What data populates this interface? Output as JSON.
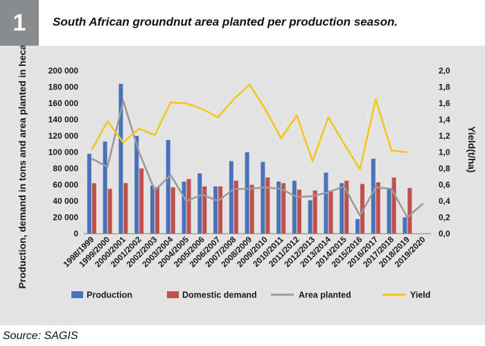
{
  "figure": {
    "number": "1",
    "title": "South African groundnut area planted per production season.",
    "source": "Source: SAGIS"
  },
  "colors": {
    "production": "#4a72b8",
    "domestic_demand": "#c0504d",
    "area_planted": "#9a9a9a",
    "yield": "#f2c61f",
    "panel_bg": "#e4e4e4",
    "number_box": "#8a8c8e"
  },
  "chart_data": {
    "type": "bar",
    "categories": [
      "1998/1999",
      "1999/2000",
      "2000/2001",
      "2001/2002",
      "2002/2003",
      "2003/2004",
      "2004/2005",
      "2005/2006",
      "2006/2007",
      "2007/2008",
      "2008/2009",
      "2009/2010",
      "2010/2011",
      "2011/2012",
      "2012/2013",
      "2013/2014",
      "2014/2015",
      "2015/2016",
      "2016/2017",
      "2017/2018",
      "2018/2019",
      "2019/2020"
    ],
    "ylabel_left": "Production, demand in tons and area planted in hecatares",
    "ylabel_right": "Yield(t/ha)",
    "ylim_left": [
      0,
      200000
    ],
    "ylim_right": [
      0,
      2.0
    ],
    "yticks_left": [
      "0",
      "20 000",
      "40 000",
      "60 000",
      "80 000",
      "100 000",
      "120 000",
      "140 000",
      "160 000",
      "180 000",
      "200 000"
    ],
    "yticks_right": [
      "0,0",
      "0,2",
      "0,4",
      "0,6",
      "0,8",
      "1,0",
      "1,2",
      "1,4",
      "1,6",
      "1,8",
      "2,0"
    ],
    "grid": false,
    "legend_position": "bottom",
    "series": [
      {
        "name": "Production",
        "type": "bar",
        "axis": "left",
        "values": [
          98000,
          113000,
          184000,
          120000,
          59000,
          115000,
          64000,
          74000,
          58000,
          89000,
          100000,
          88000,
          64000,
          65000,
          41000,
          75000,
          62000,
          18000,
          92000,
          56000,
          20000,
          null
        ]
      },
      {
        "name": "Domestic demand",
        "type": "bar",
        "axis": "left",
        "values": [
          62000,
          55000,
          62000,
          80000,
          57000,
          57000,
          67000,
          58000,
          58000,
          65000,
          60000,
          69000,
          62000,
          54000,
          53000,
          53000,
          65000,
          61000,
          63000,
          69000,
          56000,
          null
        ]
      },
      {
        "name": "Area planted",
        "type": "line",
        "axis": "left",
        "values": [
          92000,
          82000,
          163000,
          100000,
          53000,
          72000,
          40000,
          48000,
          40000,
          55000,
          55000,
          57000,
          55000,
          45000,
          46000,
          51000,
          58000,
          22000,
          57000,
          55000,
          20000,
          37000
        ]
      },
      {
        "name": "Yield",
        "type": "line",
        "axis": "right",
        "values": [
          1.03,
          1.38,
          1.12,
          1.29,
          1.21,
          1.61,
          1.6,
          1.53,
          1.43,
          1.65,
          1.83,
          1.53,
          1.17,
          1.45,
          0.89,
          1.43,
          1.1,
          0.79,
          1.65,
          1.02,
          1.0,
          null
        ]
      }
    ]
  }
}
